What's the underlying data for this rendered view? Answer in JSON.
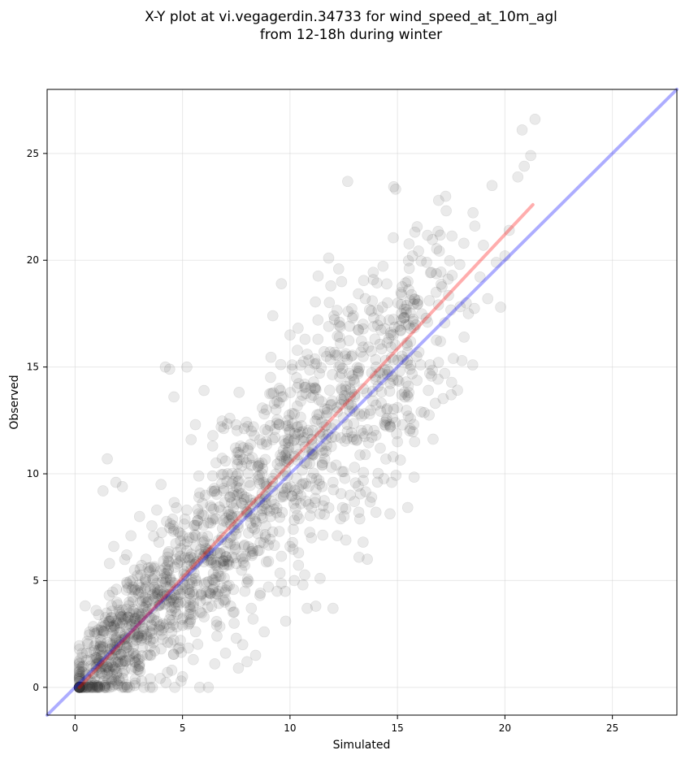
{
  "chart_data": {
    "type": "scatter",
    "title_line1": "X-Y plot at vi.vegagerdin.34733 for wind_speed_at_10m_agl",
    "title_line2": "from 12-18h during winter",
    "xlabel": "Simulated",
    "ylabel": "Observed",
    "xlim": [
      -1.3,
      28.0
    ],
    "ylim": [
      -1.3,
      28.0
    ],
    "x_ticks": [
      0,
      5,
      10,
      15,
      20,
      25
    ],
    "y_ticks": [
      0,
      5,
      10,
      15,
      20,
      25
    ],
    "grid": true,
    "colors": {
      "points": "#333333",
      "one_to_one_line": "#0000ff",
      "fit_line": "#ff0000"
    },
    "lines": {
      "one_to_one": {
        "x": [
          -1.3,
          28.0
        ],
        "y": [
          -1.3,
          28.0
        ]
      },
      "fit": {
        "x": [
          0.2,
          21.3
        ],
        "y": [
          0.0,
          22.6
        ]
      }
    },
    "point_count": 1600,
    "points": [
      [
        0.5,
        0.6
      ],
      [
        0.8,
        0.2
      ],
      [
        1.0,
        1.4
      ],
      [
        1.2,
        0.9
      ],
      [
        1.5,
        2.1
      ],
      [
        1.7,
        0.4
      ],
      [
        2.0,
        1.2
      ],
      [
        2.1,
        2.8
      ],
      [
        2.3,
        0.8
      ],
      [
        2.5,
        3.3
      ],
      [
        2.7,
        1.6
      ],
      [
        2.9,
        2.5
      ],
      [
        3.1,
        0.3
      ],
      [
        3.3,
        3.8
      ],
      [
        3.5,
        1.9
      ],
      [
        3.7,
        4.4
      ],
      [
        3.9,
        2.7
      ],
      [
        4.1,
        5.1
      ],
      [
        4.3,
        0.7
      ],
      [
        4.5,
        3.6
      ],
      [
        4.7,
        6.0
      ],
      [
        4.9,
        2.2
      ],
      [
        5.1,
        4.8
      ],
      [
        5.3,
        7.0
      ],
      [
        5.5,
        3.4
      ],
      [
        5.7,
        5.9
      ],
      [
        5.9,
        8.1
      ],
      [
        6.1,
        4.1
      ],
      [
        6.3,
        6.7
      ],
      [
        6.5,
        9.2
      ],
      [
        6.7,
        5.2
      ],
      [
        6.9,
        7.8
      ],
      [
        7.1,
        10.0
      ],
      [
        7.3,
        6.1
      ],
      [
        7.5,
        8.6
      ],
      [
        7.7,
        11.3
      ],
      [
        7.9,
        4.5
      ],
      [
        8.1,
        9.6
      ],
      [
        8.3,
        12.2
      ],
      [
        8.5,
        7.2
      ],
      [
        8.7,
        10.5
      ],
      [
        8.9,
        13.0
      ],
      [
        9.1,
        8.0
      ],
      [
        9.3,
        11.7
      ],
      [
        9.5,
        14.0
      ],
      [
        9.7,
        9.0
      ],
      [
        9.9,
        12.5
      ],
      [
        10.1,
        15.1
      ],
      [
        10.3,
        9.8
      ],
      [
        10.5,
        13.4
      ],
      [
        10.7,
        16.3
      ],
      [
        10.9,
        11.0
      ],
      [
        11.1,
        14.3
      ],
      [
        11.3,
        17.2
      ],
      [
        11.5,
        10.4
      ],
      [
        11.7,
        15.5
      ],
      [
        11.9,
        18.8
      ],
      [
        12.1,
        12.3
      ],
      [
        12.3,
        16.4
      ],
      [
        12.5,
        13.5
      ],
      [
        12.7,
        17.6
      ],
      [
        12.9,
        14.6
      ],
      [
        13.1,
        11.6
      ],
      [
        13.3,
        15.7
      ],
      [
        13.5,
        18.2
      ],
      [
        13.7,
        12.8
      ],
      [
        13.9,
        16.9
      ],
      [
        14.1,
        14.1
      ],
      [
        14.3,
        17.8
      ],
      [
        14.5,
        13.0
      ],
      [
        14.7,
        16.5
      ],
      [
        14.9,
        12.4
      ],
      [
        15.1,
        14.8
      ],
      [
        15.3,
        17.3
      ],
      [
        15.5,
        13.6
      ],
      [
        15.7,
        20.2
      ],
      [
        15.9,
        15.5
      ],
      [
        16.1,
        12.9
      ],
      [
        16.5,
        14.7
      ],
      [
        17.0,
        16.2
      ],
      [
        17.5,
        13.7
      ],
      [
        18.0,
        15.3
      ],
      [
        18.3,
        17.5
      ],
      [
        18.6,
        21.6
      ],
      [
        19.0,
        20.7
      ],
      [
        19.4,
        23.5
      ],
      [
        19.8,
        17.8
      ],
      [
        20.2,
        21.4
      ],
      [
        20.6,
        23.9
      ],
      [
        20.9,
        24.4
      ],
      [
        21.2,
        24.9
      ],
      [
        21.4,
        26.6
      ],
      [
        20.8,
        26.1
      ],
      [
        0.3,
        1.4
      ],
      [
        0.6,
        0.1
      ],
      [
        0.9,
        2.6
      ],
      [
        1.1,
        3.4
      ],
      [
        1.4,
        0.1
      ],
      [
        1.6,
        5.8
      ],
      [
        1.8,
        6.6
      ],
      [
        2.2,
        9.4
      ],
      [
        1.3,
        9.2
      ],
      [
        1.9,
        9.6
      ],
      [
        1.5,
        10.7
      ],
      [
        2.4,
        6.2
      ],
      [
        2.6,
        7.1
      ],
      [
        3.0,
        8.0
      ],
      [
        3.2,
        0.0
      ],
      [
        3.4,
        5.6
      ],
      [
        3.6,
        0.0
      ],
      [
        3.8,
        8.3
      ],
      [
        4.0,
        9.5
      ],
      [
        4.2,
        15.0
      ],
      [
        4.4,
        14.9
      ],
      [
        4.6,
        13.6
      ],
      [
        4.8,
        1.8
      ],
      [
        5.0,
        0.5
      ],
      [
        5.2,
        15.0
      ],
      [
        5.4,
        11.6
      ],
      [
        5.6,
        12.3
      ],
      [
        5.8,
        0.0
      ],
      [
        6.0,
        13.9
      ],
      [
        6.2,
        0.0
      ],
      [
        6.4,
        11.3
      ],
      [
        6.6,
        2.4
      ],
      [
        6.8,
        12.2
      ],
      [
        7.0,
        1.6
      ],
      [
        7.2,
        12.6
      ],
      [
        7.4,
        3.0
      ],
      [
        7.6,
        0.9
      ],
      [
        7.8,
        2.0
      ],
      [
        8.0,
        1.2
      ],
      [
        8.2,
        3.7
      ],
      [
        8.4,
        1.5
      ],
      [
        8.6,
        4.3
      ],
      [
        8.8,
        2.6
      ],
      [
        9.0,
        4.7
      ],
      [
        9.2,
        17.4
      ],
      [
        9.4,
        4.5
      ],
      [
        9.6,
        18.9
      ],
      [
        9.8,
        3.1
      ],
      [
        10.0,
        16.5
      ],
      [
        10.2,
        5.0
      ],
      [
        10.4,
        6.3
      ],
      [
        10.6,
        4.8
      ],
      [
        10.8,
        3.7
      ],
      [
        11.0,
        7.0
      ],
      [
        11.2,
        3.8
      ],
      [
        11.4,
        5.1
      ],
      [
        11.6,
        8.1
      ],
      [
        11.8,
        20.1
      ],
      [
        12.0,
        3.7
      ],
      [
        12.2,
        7.1
      ],
      [
        12.4,
        19.0
      ],
      [
        12.6,
        6.9
      ],
      [
        12.8,
        9.0
      ],
      [
        13.0,
        8.7
      ],
      [
        13.2,
        8.2
      ],
      [
        13.4,
        6.8
      ],
      [
        13.6,
        6.0
      ],
      [
        13.8,
        8.9
      ],
      [
        14.0,
        8.2
      ],
      [
        14.2,
        11.2
      ],
      [
        14.4,
        12.3
      ],
      [
        14.6,
        14.8
      ],
      [
        14.8,
        10.8
      ],
      [
        15.0,
        11.5
      ],
      [
        15.2,
        13.7
      ],
      [
        15.4,
        14.3
      ],
      [
        15.6,
        16.8
      ],
      [
        15.8,
        11.5
      ],
      [
        16.0,
        15.7
      ],
      [
        16.4,
        17.1
      ],
      [
        16.8,
        18.5
      ],
      [
        17.2,
        14.7
      ],
      [
        17.6,
        15.4
      ],
      [
        17.9,
        19.8
      ],
      [
        18.1,
        16.4
      ],
      [
        18.2,
        18.0
      ],
      [
        18.5,
        15.1
      ],
      [
        19.2,
        18.2
      ],
      [
        19.6,
        19.9
      ],
      [
        20.0,
        20.2
      ],
      [
        2.0,
        0.1
      ],
      [
        2.8,
        0.2
      ],
      [
        3.5,
        0.4
      ],
      [
        4.5,
        0.8
      ],
      [
        5.5,
        1.3
      ],
      [
        6.5,
        1.1
      ],
      [
        7.5,
        2.3
      ],
      [
        1.0,
        0.8
      ],
      [
        1.7,
        1.5
      ],
      [
        2.4,
        1.9
      ],
      [
        3.1,
        2.3
      ],
      [
        3.8,
        3.1
      ],
      [
        4.4,
        4.0
      ],
      [
        5.0,
        4.6
      ],
      [
        5.6,
        5.1
      ],
      [
        6.2,
        6.3
      ],
      [
        6.8,
        6.9
      ],
      [
        7.4,
        7.5
      ],
      [
        8.0,
        8.2
      ],
      [
        8.6,
        8.8
      ],
      [
        9.2,
        9.4
      ],
      [
        9.8,
        10.1
      ],
      [
        10.4,
        10.9
      ],
      [
        11.0,
        11.6
      ],
      [
        11.6,
        12.2
      ],
      [
        12.2,
        12.9
      ],
      [
        12.8,
        13.6
      ],
      [
        1.2,
        2.1
      ],
      [
        2.2,
        3.0
      ],
      [
        3.2,
        4.2
      ],
      [
        4.2,
        5.6
      ],
      [
        5.2,
        6.4
      ],
      [
        6.2,
        7.7
      ],
      [
        7.2,
        8.9
      ],
      [
        8.2,
        10.4
      ],
      [
        9.2,
        11.6
      ],
      [
        10.2,
        12.8
      ],
      [
        1.5,
        1.0
      ],
      [
        2.5,
        1.7
      ],
      [
        3.5,
        2.2
      ],
      [
        4.5,
        2.6
      ],
      [
        5.5,
        3.8
      ],
      [
        6.5,
        4.9
      ],
      [
        7.5,
        5.8
      ],
      [
        8.5,
        6.4
      ],
      [
        9.5,
        7.3
      ],
      [
        10.5,
        8.6
      ],
      [
        11.5,
        9.4
      ],
      [
        12.5,
        10.1
      ],
      [
        13.5,
        10.9
      ],
      [
        14.5,
        12.6
      ],
      [
        15.5,
        12.7
      ],
      [
        0.7,
        0.0
      ],
      [
        1.9,
        0.3
      ],
      [
        3.0,
        1.1
      ],
      [
        4.0,
        1.8
      ],
      [
        5.0,
        2.9
      ],
      [
        6.0,
        3.3
      ],
      [
        7.0,
        4.1
      ],
      [
        8.0,
        4.9
      ],
      [
        9.0,
        5.9
      ],
      [
        10.0,
        6.6
      ],
      [
        11.0,
        8.4
      ],
      [
        12.0,
        9.6
      ],
      [
        13.0,
        10.3
      ],
      [
        14.0,
        11.8
      ],
      [
        15.0,
        13.1
      ],
      [
        9.6,
        13.6
      ],
      [
        10.3,
        14.5
      ],
      [
        10.8,
        15.6
      ],
      [
        11.3,
        16.3
      ],
      [
        11.8,
        16.9
      ],
      [
        12.3,
        17.1
      ],
      [
        12.9,
        17.3
      ],
      [
        13.4,
        17.0
      ],
      [
        13.9,
        17.3
      ],
      [
        14.4,
        16.8
      ],
      [
        3.3,
        6.0
      ],
      [
        3.9,
        6.8
      ],
      [
        4.6,
        7.4
      ],
      [
        5.2,
        8.3
      ],
      [
        5.8,
        9.1
      ],
      [
        6.4,
        9.9
      ],
      [
        7.0,
        10.6
      ],
      [
        7.6,
        11.0
      ],
      [
        8.2,
        12.0
      ],
      [
        8.8,
        12.8
      ],
      [
        2.7,
        4.7
      ],
      [
        3.6,
        5.1
      ],
      [
        4.3,
        6.1
      ],
      [
        5.0,
        7.1
      ],
      [
        5.7,
        7.8
      ],
      [
        6.3,
        8.5
      ],
      [
        6.9,
        9.2
      ],
      [
        7.5,
        9.9
      ],
      [
        8.1,
        10.7
      ],
      [
        8.7,
        11.4
      ]
    ]
  }
}
